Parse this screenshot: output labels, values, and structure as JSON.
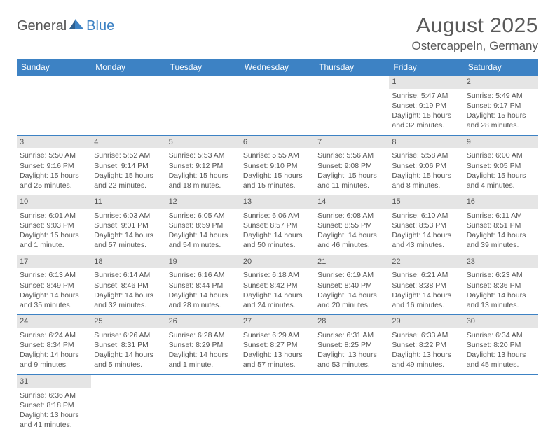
{
  "logo": {
    "part1": "General",
    "part2": "Blue"
  },
  "title": "August 2025",
  "location": "Ostercappeln, Germany",
  "colors": {
    "header_bg": "#3d82c4",
    "header_text": "#ffffff",
    "daynum_bg": "#e5e5e5",
    "body_text": "#555555",
    "row_border": "#3d82c4",
    "page_bg": "#ffffff",
    "logo_accent": "#3d82c4"
  },
  "day_headers": [
    "Sunday",
    "Monday",
    "Tuesday",
    "Wednesday",
    "Thursday",
    "Friday",
    "Saturday"
  ],
  "weeks": [
    [
      null,
      null,
      null,
      null,
      null,
      {
        "n": "1",
        "sunrise": "Sunrise: 5:47 AM",
        "sunset": "Sunset: 9:19 PM",
        "d1": "Daylight: 15 hours",
        "d2": "and 32 minutes."
      },
      {
        "n": "2",
        "sunrise": "Sunrise: 5:49 AM",
        "sunset": "Sunset: 9:17 PM",
        "d1": "Daylight: 15 hours",
        "d2": "and 28 minutes."
      }
    ],
    [
      {
        "n": "3",
        "sunrise": "Sunrise: 5:50 AM",
        "sunset": "Sunset: 9:16 PM",
        "d1": "Daylight: 15 hours",
        "d2": "and 25 minutes."
      },
      {
        "n": "4",
        "sunrise": "Sunrise: 5:52 AM",
        "sunset": "Sunset: 9:14 PM",
        "d1": "Daylight: 15 hours",
        "d2": "and 22 minutes."
      },
      {
        "n": "5",
        "sunrise": "Sunrise: 5:53 AM",
        "sunset": "Sunset: 9:12 PM",
        "d1": "Daylight: 15 hours",
        "d2": "and 18 minutes."
      },
      {
        "n": "6",
        "sunrise": "Sunrise: 5:55 AM",
        "sunset": "Sunset: 9:10 PM",
        "d1": "Daylight: 15 hours",
        "d2": "and 15 minutes."
      },
      {
        "n": "7",
        "sunrise": "Sunrise: 5:56 AM",
        "sunset": "Sunset: 9:08 PM",
        "d1": "Daylight: 15 hours",
        "d2": "and 11 minutes."
      },
      {
        "n": "8",
        "sunrise": "Sunrise: 5:58 AM",
        "sunset": "Sunset: 9:06 PM",
        "d1": "Daylight: 15 hours",
        "d2": "and 8 minutes."
      },
      {
        "n": "9",
        "sunrise": "Sunrise: 6:00 AM",
        "sunset": "Sunset: 9:05 PM",
        "d1": "Daylight: 15 hours",
        "d2": "and 4 minutes."
      }
    ],
    [
      {
        "n": "10",
        "sunrise": "Sunrise: 6:01 AM",
        "sunset": "Sunset: 9:03 PM",
        "d1": "Daylight: 15 hours",
        "d2": "and 1 minute."
      },
      {
        "n": "11",
        "sunrise": "Sunrise: 6:03 AM",
        "sunset": "Sunset: 9:01 PM",
        "d1": "Daylight: 14 hours",
        "d2": "and 57 minutes."
      },
      {
        "n": "12",
        "sunrise": "Sunrise: 6:05 AM",
        "sunset": "Sunset: 8:59 PM",
        "d1": "Daylight: 14 hours",
        "d2": "and 54 minutes."
      },
      {
        "n": "13",
        "sunrise": "Sunrise: 6:06 AM",
        "sunset": "Sunset: 8:57 PM",
        "d1": "Daylight: 14 hours",
        "d2": "and 50 minutes."
      },
      {
        "n": "14",
        "sunrise": "Sunrise: 6:08 AM",
        "sunset": "Sunset: 8:55 PM",
        "d1": "Daylight: 14 hours",
        "d2": "and 46 minutes."
      },
      {
        "n": "15",
        "sunrise": "Sunrise: 6:10 AM",
        "sunset": "Sunset: 8:53 PM",
        "d1": "Daylight: 14 hours",
        "d2": "and 43 minutes."
      },
      {
        "n": "16",
        "sunrise": "Sunrise: 6:11 AM",
        "sunset": "Sunset: 8:51 PM",
        "d1": "Daylight: 14 hours",
        "d2": "and 39 minutes."
      }
    ],
    [
      {
        "n": "17",
        "sunrise": "Sunrise: 6:13 AM",
        "sunset": "Sunset: 8:49 PM",
        "d1": "Daylight: 14 hours",
        "d2": "and 35 minutes."
      },
      {
        "n": "18",
        "sunrise": "Sunrise: 6:14 AM",
        "sunset": "Sunset: 8:46 PM",
        "d1": "Daylight: 14 hours",
        "d2": "and 32 minutes."
      },
      {
        "n": "19",
        "sunrise": "Sunrise: 6:16 AM",
        "sunset": "Sunset: 8:44 PM",
        "d1": "Daylight: 14 hours",
        "d2": "and 28 minutes."
      },
      {
        "n": "20",
        "sunrise": "Sunrise: 6:18 AM",
        "sunset": "Sunset: 8:42 PM",
        "d1": "Daylight: 14 hours",
        "d2": "and 24 minutes."
      },
      {
        "n": "21",
        "sunrise": "Sunrise: 6:19 AM",
        "sunset": "Sunset: 8:40 PM",
        "d1": "Daylight: 14 hours",
        "d2": "and 20 minutes."
      },
      {
        "n": "22",
        "sunrise": "Sunrise: 6:21 AM",
        "sunset": "Sunset: 8:38 PM",
        "d1": "Daylight: 14 hours",
        "d2": "and 16 minutes."
      },
      {
        "n": "23",
        "sunrise": "Sunrise: 6:23 AM",
        "sunset": "Sunset: 8:36 PM",
        "d1": "Daylight: 14 hours",
        "d2": "and 13 minutes."
      }
    ],
    [
      {
        "n": "24",
        "sunrise": "Sunrise: 6:24 AM",
        "sunset": "Sunset: 8:34 PM",
        "d1": "Daylight: 14 hours",
        "d2": "and 9 minutes."
      },
      {
        "n": "25",
        "sunrise": "Sunrise: 6:26 AM",
        "sunset": "Sunset: 8:31 PM",
        "d1": "Daylight: 14 hours",
        "d2": "and 5 minutes."
      },
      {
        "n": "26",
        "sunrise": "Sunrise: 6:28 AM",
        "sunset": "Sunset: 8:29 PM",
        "d1": "Daylight: 14 hours",
        "d2": "and 1 minute."
      },
      {
        "n": "27",
        "sunrise": "Sunrise: 6:29 AM",
        "sunset": "Sunset: 8:27 PM",
        "d1": "Daylight: 13 hours",
        "d2": "and 57 minutes."
      },
      {
        "n": "28",
        "sunrise": "Sunrise: 6:31 AM",
        "sunset": "Sunset: 8:25 PM",
        "d1": "Daylight: 13 hours",
        "d2": "and 53 minutes."
      },
      {
        "n": "29",
        "sunrise": "Sunrise: 6:33 AM",
        "sunset": "Sunset: 8:22 PM",
        "d1": "Daylight: 13 hours",
        "d2": "and 49 minutes."
      },
      {
        "n": "30",
        "sunrise": "Sunrise: 6:34 AM",
        "sunset": "Sunset: 8:20 PM",
        "d1": "Daylight: 13 hours",
        "d2": "and 45 minutes."
      }
    ],
    [
      {
        "n": "31",
        "sunrise": "Sunrise: 6:36 AM",
        "sunset": "Sunset: 8:18 PM",
        "d1": "Daylight: 13 hours",
        "d2": "and 41 minutes."
      },
      null,
      null,
      null,
      null,
      null,
      null
    ]
  ]
}
